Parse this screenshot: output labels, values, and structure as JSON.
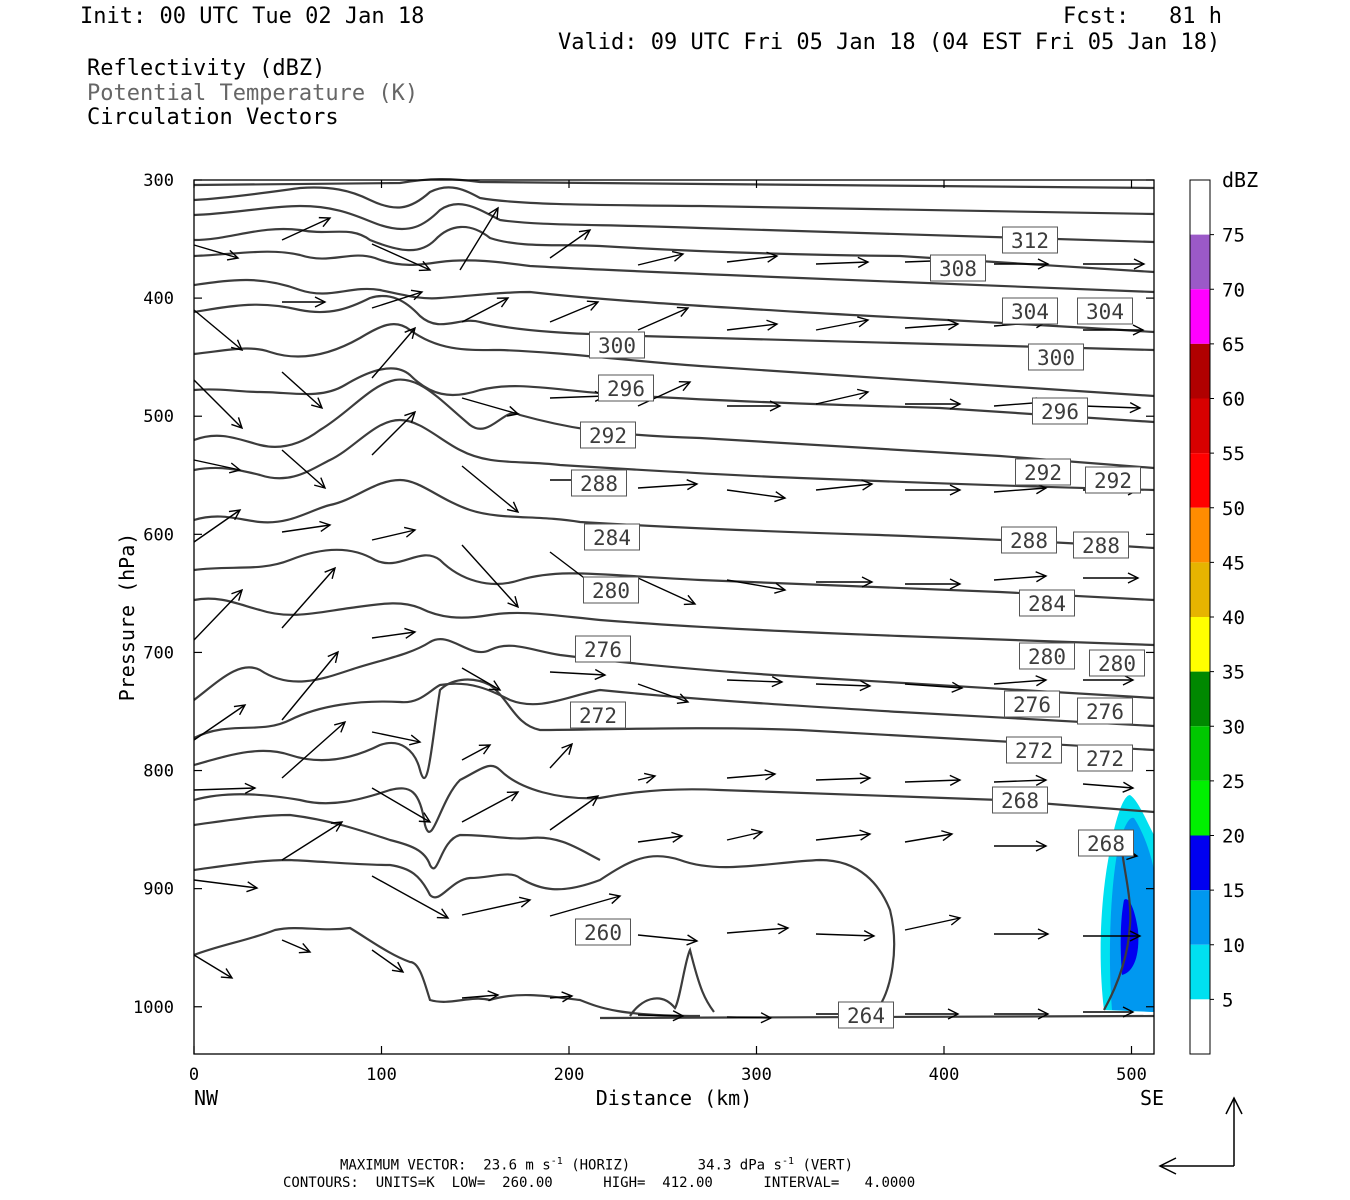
{
  "header": {
    "init": "Init: 00 UTC Tue 02 Jan 18",
    "fcst": "Fcst:   81 h",
    "valid": "Valid: 09 UTC Fri 05 Jan 18 (04 EST Fri 05 Jan 18)"
  },
  "legend_lines": [
    "Reflectivity (dBZ)",
    "Potential Temperature (K)",
    "Circulation Vectors"
  ],
  "footer": {
    "line1_a": "MAXIMUM VECTOR:  23.6 m s",
    "line1_b": "(HORIZ)",
    "line1_c": "34.3 dPa s",
    "line1_d": "(VERT)",
    "line2": "CONTOURS:  UNITS=K  LOW=  260.00      HIGH=  412.00      INTERVAL=   4.0000"
  },
  "colors": {
    "contour": "#3c3c3c",
    "dbz_5": "#00e0f0",
    "dbz_10": "#0098f0",
    "dbz_15": "#0000f0",
    "dbz_20": "#00f000",
    "dbz_25": "#00c800",
    "dbz_30": "#008800",
    "dbz_35": "#ffff00",
    "dbz_40": "#e6b400",
    "dbz_45": "#ff8c00",
    "dbz_50": "#ff0000",
    "dbz_55": "#d80000",
    "dbz_60": "#b00000",
    "dbz_65": "#ff00ff",
    "dbz_70": "#9b59c8"
  },
  "chart_data": {
    "type": "cross-section",
    "xlabel": "Distance (km)",
    "ylabel": "Pressure (hPa)",
    "x_ticks": [
      0,
      100,
      200,
      300,
      400,
      500
    ],
    "y_ticks": [
      300,
      400,
      500,
      600,
      700,
      800,
      900,
      1000
    ],
    "xlim": [
      0,
      512
    ],
    "ylim": [
      300,
      1040
    ],
    "x_end_labels": {
      "left": "NW",
      "right": "SE"
    },
    "colorbar": {
      "title": "dBZ",
      "levels": [
        5,
        10,
        15,
        20,
        25,
        30,
        35,
        40,
        45,
        50,
        55,
        60,
        65,
        70,
        75
      ]
    },
    "theta_label_values": [
      "312",
      "308",
      "304",
      "304",
      "300",
      "300",
      "296",
      "296",
      "292",
      "292",
      "292",
      "288",
      "288",
      "288",
      "284",
      "284",
      "280",
      "280",
      "280",
      "276",
      "276",
      "276",
      "272",
      "272",
      "272",
      "268",
      "268",
      "260",
      "264"
    ],
    "theta_levels": [
      260,
      264,
      268,
      272,
      276,
      280,
      284,
      288,
      292,
      296,
      300,
      304,
      308,
      312
    ]
  }
}
